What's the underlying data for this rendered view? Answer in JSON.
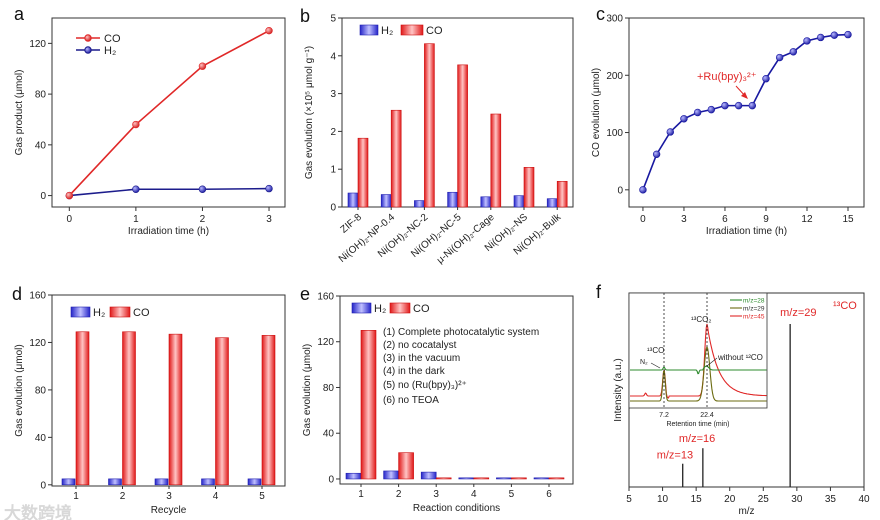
{
  "watermark": "大数跨境",
  "colors": {
    "co": "#e02828",
    "h2": "#1c1c8c",
    "bar_blue": "#2b2bd6",
    "bar_red": "#e02020",
    "green": "#2e8b2e",
    "olive": "#6b6b10"
  },
  "chart_data": [
    {
      "panel": "a",
      "type": "line",
      "xlabel": "Irradiation time (h)",
      "ylabel": "Gas product (μmol)",
      "x": [
        0,
        1,
        2,
        3
      ],
      "xticks": [
        "0",
        "1",
        "2",
        "3"
      ],
      "yticks": [
        "0",
        "40",
        "80",
        "120"
      ],
      "xlim": [
        -0.26,
        3.24
      ],
      "ylim": [
        -9,
        140
      ],
      "series": [
        {
          "name": "CO",
          "values": [
            0,
            56,
            102,
            130
          ]
        },
        {
          "name": "H₂",
          "values": [
            0,
            5,
            5,
            5.5
          ]
        }
      ],
      "legend": "top-left"
    },
    {
      "panel": "b",
      "type": "bar",
      "ylabel": "Gas evolution (×10⁵ μmol g⁻¹)",
      "categories": [
        "ZIF-8",
        "Ni(OH)₂-NP-0.4",
        "Ni(OH)₂-NC-2",
        "Ni(OH)₂-NC-5",
        "μ-Ni(OH)₂-Cage",
        "Ni(OH)₂-NS",
        "Ni(OH)₂-Bulk"
      ],
      "yticks": [
        "0",
        "1",
        "2",
        "3",
        "4",
        "5"
      ],
      "ylim": [
        0,
        5
      ],
      "series": [
        {
          "name": "H₂",
          "values": [
            0.37,
            0.33,
            0.17,
            0.39,
            0.27,
            0.3,
            0.22
          ]
        },
        {
          "name": "CO",
          "values": [
            1.82,
            2.56,
            4.32,
            3.76,
            2.46,
            1.05,
            0.68
          ]
        }
      ],
      "legend": "top-left"
    },
    {
      "panel": "c",
      "type": "line",
      "xlabel": "Irradiation time (h)",
      "ylabel": "CO evolution (μmol)",
      "x": [
        0,
        1,
        2,
        3,
        4,
        5,
        6,
        7,
        8,
        9,
        10,
        11,
        12,
        13,
        14,
        15
      ],
      "xticks": [
        "0",
        "3",
        "6",
        "9",
        "12",
        "15"
      ],
      "yticks": [
        "0",
        "100",
        "200",
        "300"
      ],
      "xlim": [
        -1.02,
        16.17
      ],
      "ylim": [
        -30,
        300
      ],
      "series": [
        {
          "name": "CO",
          "values": [
            0,
            62,
            101,
            124,
            135,
            140,
            147,
            147,
            147,
            194,
            231,
            241,
            260,
            266,
            270,
            271
          ]
        }
      ],
      "annotation": "+Ru(bpy)₃²⁺"
    },
    {
      "panel": "d",
      "type": "bar",
      "xlabel": "Recycle",
      "ylabel": "Gas evolution (μmol)",
      "categories": [
        "1",
        "2",
        "3",
        "4",
        "5"
      ],
      "yticks": [
        "0",
        "40",
        "80",
        "120",
        "160"
      ],
      "ylim": [
        -1,
        160
      ],
      "series": [
        {
          "name": "H₂",
          "values": [
            5,
            5,
            5,
            5,
            5
          ]
        },
        {
          "name": "CO",
          "values": [
            129,
            129,
            127,
            124,
            126
          ]
        }
      ],
      "legend": "top-left"
    },
    {
      "panel": "e",
      "type": "bar",
      "xlabel": "Reaction conditions",
      "ylabel": "Gas evolution (μmol)",
      "categories": [
        "1",
        "2",
        "3",
        "4",
        "5",
        "6"
      ],
      "yticks": [
        "0",
        "40",
        "80",
        "120",
        "160"
      ],
      "ylim": [
        -4.4,
        160
      ],
      "series": [
        {
          "name": "H₂",
          "values": [
            5,
            7,
            6,
            1,
            1,
            1
          ]
        },
        {
          "name": "CO",
          "values": [
            130,
            23,
            1,
            1,
            1,
            1
          ]
        }
      ],
      "conditions": [
        "(1) Complete photocatalytic system",
        "(2) no cocatalyst",
        "(3) in the vacuum",
        "(4) in the dark",
        "(5) no (Ru(bpy)₃)²⁺",
        "(6) no TEOA"
      ],
      "legend": "top-left"
    },
    {
      "panel": "f",
      "type": "bar",
      "xlabel": "m/z",
      "ylabel": "Intensity (a.u.)",
      "xticks": [
        "5",
        "10",
        "15",
        "20",
        "25",
        "30",
        "35",
        "40"
      ],
      "xlim": [
        5,
        40
      ],
      "ylim": [
        0,
        1
      ],
      "peaks": [
        {
          "mz": 13,
          "intensity": 0.12,
          "label": "m/z=13"
        },
        {
          "mz": 16,
          "intensity": 0.2,
          "label": "m/z=16"
        },
        {
          "mz": 29,
          "intensity": 0.84,
          "label": "m/z=29"
        }
      ],
      "title_label": "¹³CO",
      "inset": {
        "xlabel": "Retention time (min)",
        "xticks": [
          "7.2",
          "22.4"
        ],
        "legend": [
          "m/z=28",
          "m/z=29",
          "m/z=45"
        ],
        "labels": {
          "co2": "¹³CO₂",
          "co": "¹³CO",
          "n2": "N₂",
          "without": "without ¹²CO"
        }
      }
    }
  ]
}
